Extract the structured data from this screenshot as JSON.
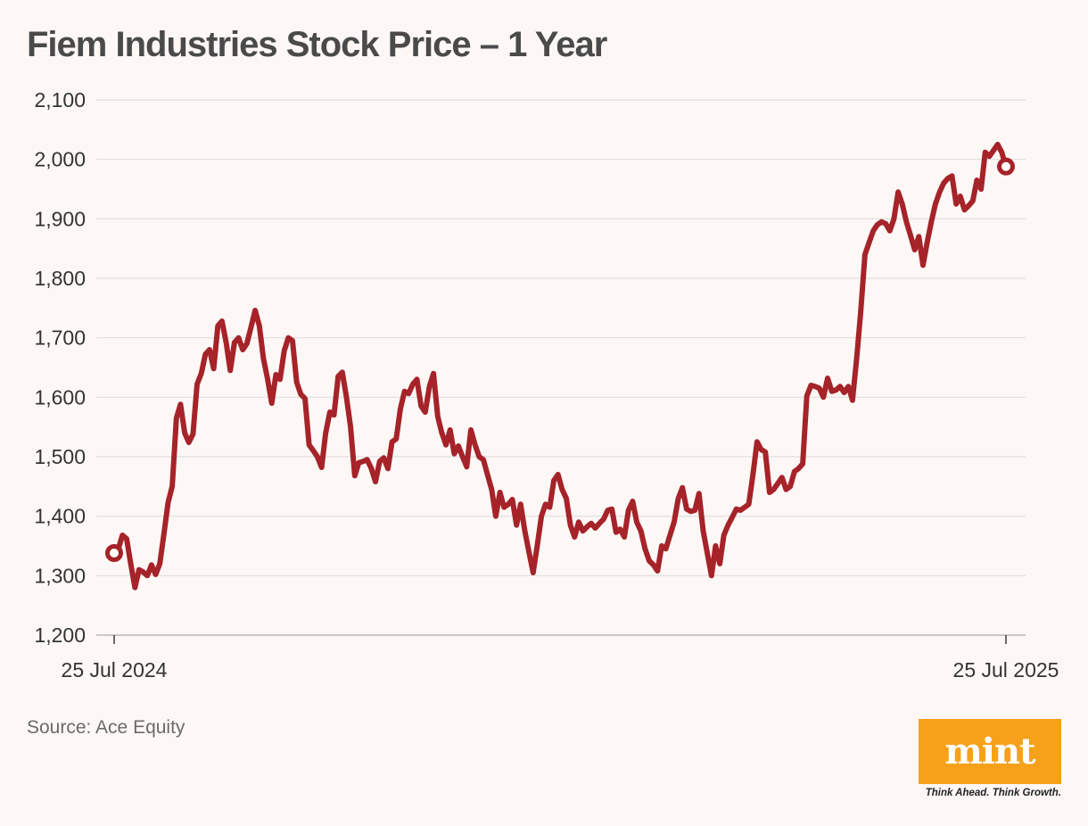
{
  "chart_data": {
    "type": "line",
    "title": "Fiem Industries Stock Price – 1 Year",
    "xlabel": "",
    "ylabel": "",
    "ylim": [
      1200,
      2100
    ],
    "yticks": [
      1200,
      1300,
      1400,
      1500,
      1600,
      1700,
      1800,
      1900,
      2000,
      2100
    ],
    "ytick_labels": [
      "1,200",
      "1,300",
      "1,400",
      "1,500",
      "1,600",
      "1,700",
      "1,800",
      "1,900",
      "2,000",
      "2,100"
    ],
    "x_start_label": "25 Jul 2024",
    "x_end_label": "25 Jul 2025",
    "grid": true,
    "line_color": "#a52329",
    "series": [
      {
        "name": "Fiem Industries",
        "values": [
          1338,
          1345,
          1368,
          1362,
          1320,
          1280,
          1310,
          1306,
          1300,
          1318,
          1302,
          1320,
          1370,
          1423,
          1450,
          1565,
          1588,
          1540,
          1524,
          1538,
          1622,
          1640,
          1672,
          1680,
          1648,
          1720,
          1728,
          1692,
          1645,
          1692,
          1700,
          1680,
          1690,
          1718,
          1746,
          1720,
          1665,
          1630,
          1590,
          1638,
          1630,
          1678,
          1700,
          1695,
          1625,
          1605,
          1598,
          1520,
          1510,
          1500,
          1482,
          1540,
          1575,
          1570,
          1635,
          1642,
          1600,
          1550,
          1468,
          1490,
          1492,
          1495,
          1480,
          1458,
          1492,
          1498,
          1480,
          1525,
          1530,
          1580,
          1610,
          1606,
          1622,
          1630,
          1585,
          1575,
          1618,
          1640,
          1568,
          1540,
          1520,
          1545,
          1505,
          1518,
          1500,
          1483,
          1545,
          1520,
          1500,
          1495,
          1470,
          1445,
          1400,
          1440,
          1415,
          1420,
          1428,
          1385,
          1420,
          1375,
          1340,
          1305,
          1350,
          1400,
          1420,
          1415,
          1460,
          1470,
          1445,
          1430,
          1385,
          1365,
          1390,
          1375,
          1382,
          1388,
          1380,
          1388,
          1395,
          1410,
          1412,
          1373,
          1378,
          1365,
          1410,
          1425,
          1390,
          1375,
          1345,
          1325,
          1318,
          1308,
          1350,
          1345,
          1368,
          1390,
          1430,
          1448,
          1412,
          1408,
          1410,
          1438,
          1375,
          1338,
          1300,
          1350,
          1320,
          1368,
          1385,
          1398,
          1412,
          1410,
          1415,
          1420,
          1470,
          1525,
          1512,
          1508,
          1440,
          1445,
          1455,
          1465,
          1445,
          1450,
          1475,
          1480,
          1488,
          1602,
          1620,
          1618,
          1615,
          1600,
          1632,
          1610,
          1612,
          1618,
          1608,
          1618,
          1595,
          1665,
          1745,
          1840,
          1860,
          1880,
          1890,
          1895,
          1892,
          1880,
          1900,
          1945,
          1925,
          1895,
          1872,
          1848,
          1870,
          1822,
          1860,
          1895,
          1925,
          1945,
          1960,
          1968,
          1972,
          1925,
          1938,
          1915,
          1922,
          1930,
          1965,
          1950,
          2012,
          2005,
          2015,
          2025,
          2012,
          1988
        ]
      }
    ]
  },
  "source": "Source: Ace Equity",
  "logo": {
    "word": "mint",
    "tagline": "Think Ahead. Think Growth.",
    "bg_color": "#f7a11a"
  }
}
